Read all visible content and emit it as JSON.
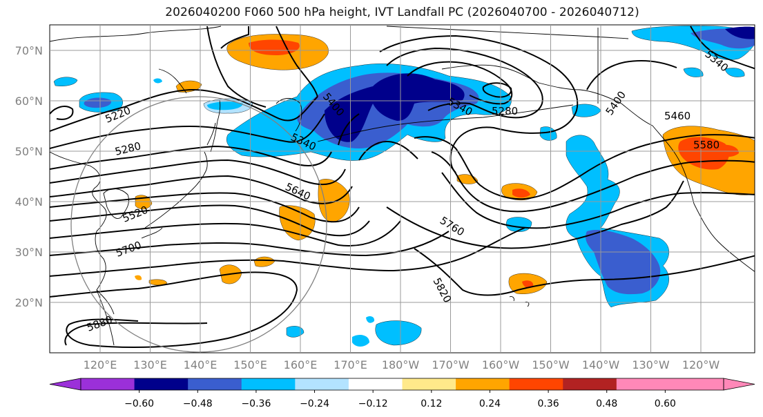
{
  "title": "2026040200 F060 500 hPa height, IVT Landfall PC (2026040700 - 2026040712)",
  "map": {
    "lat_labels": [
      "70°N",
      "60°N",
      "50°N",
      "40°N",
      "30°N",
      "20°N"
    ],
    "lon_labels": [
      "120°E",
      "130°E",
      "140°E",
      "150°E",
      "160°E",
      "170°E",
      "180°W",
      "170°W",
      "160°W",
      "150°W",
      "140°W",
      "130°W",
      "120°W"
    ],
    "contour_labels": [
      "5220",
      "5280",
      "5400",
      "5340",
      "5340",
      "5280",
      "5400",
      "5460",
      "5580",
      "5640",
      "5520",
      "5700",
      "5760",
      "5820",
      "5880",
      "5340"
    ]
  },
  "colorbar": {
    "ticks": [
      "−0.60",
      "−0.48",
      "−0.36",
      "−0.24",
      "−0.12",
      "0.12",
      "0.24",
      "0.36",
      "0.48",
      "0.60"
    ],
    "colors": [
      "#9b30d9",
      "#00008b",
      "#3a5ecf",
      "#00bfff",
      "#b3e3ff",
      "#ffffff",
      "#ffe98a",
      "#ffa500",
      "#ff4500",
      "#b22222",
      "#ff88b8",
      "#ff88b8"
    ]
  }
}
